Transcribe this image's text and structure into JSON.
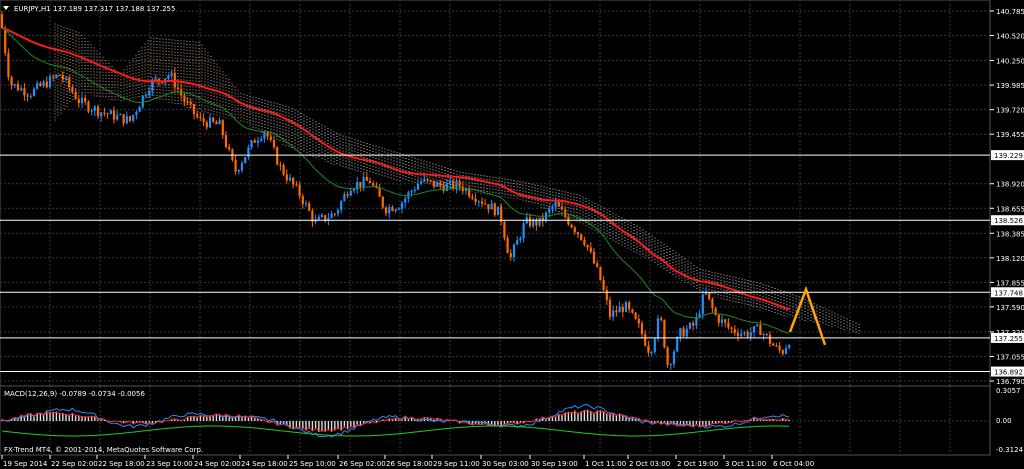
{
  "window": {
    "symbol_line": "EURJPY,H1  137.189 137.317 137.188 137.255",
    "copyright": "FX-Trend MT4, © 2001-2014, MetaQuotes Software Corp."
  },
  "price_axis": {
    "labels": [
      "140.785",
      "140.520",
      "140.250",
      "139.985",
      "139.720",
      "139.455",
      "139.229",
      "138.920",
      "138.655",
      "138.526",
      "138.385",
      "138.120",
      "137.855",
      "137.748",
      "137.590",
      "137.320",
      "137.255",
      "137.055",
      "136.892",
      "136.790"
    ]
  },
  "level_tags": [
    {
      "value": "139.229",
      "color": "#ffffff"
    },
    {
      "value": "138.526",
      "color": "#ffffff"
    },
    {
      "value": "137.748",
      "color": "#ffffff"
    },
    {
      "value": "137.255",
      "color": "#ffffff"
    },
    {
      "value": "136.892",
      "color": "#ffffff"
    }
  ],
  "macd": {
    "label": "MACD(12,26,9) -0.0789 -0.0734 -0.0056",
    "axis_labels": [
      "0.3057",
      "0.00",
      "-0.3124"
    ]
  },
  "time_axis": {
    "labels": [
      "19 Sep 2014",
      "22 Sep 02:00",
      "22 Sep 18:00",
      "23 Sep 10:00",
      "24 Sep 02:00",
      "24 Sep 18:00",
      "25 Sep 10:00",
      "26 Sep 02:00",
      "26 Sep 18:00",
      "29 Sep 11:00",
      "30 Sep 03:00",
      "30 Sep 19:00",
      "1 Oct 11:00",
      "2 Oct 03:00",
      "2 Oct 19:00",
      "3 Oct 11:00",
      "6 Oct 04:00"
    ]
  },
  "colors": {
    "bull": "#1e90ff",
    "bear": "#ff6a00",
    "ema_slow": "#ff1a1a",
    "ema_fast": "#1a8c1a",
    "cloud": "#ffd0b0",
    "cloud2": "#ffffff",
    "forecast": "#ffa500",
    "grid": "#3a3a3a"
  }
}
